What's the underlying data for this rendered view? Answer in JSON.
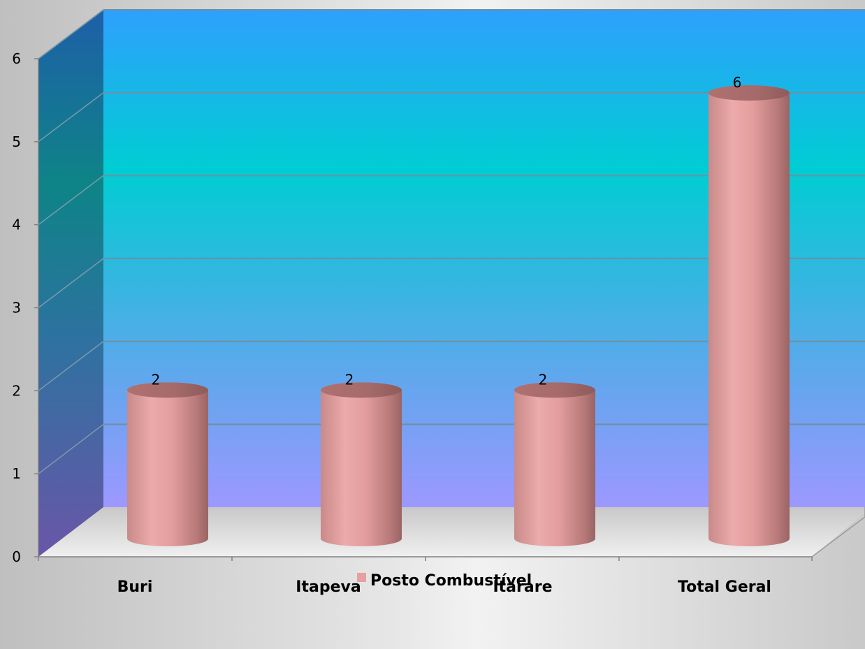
{
  "chart_data": {
    "type": "bar",
    "style": "3d-cylinder",
    "categories": [
      "Buri",
      "Itapeva",
      "Itarare",
      "Total Geral"
    ],
    "series": [
      {
        "name": "Posto Combustível",
        "values": [
          2,
          2,
          2,
          6
        ],
        "color": "#e6a0a0"
      }
    ],
    "data_labels": [
      "2",
      "2",
      "2",
      "6"
    ],
    "ylim": [
      0,
      6
    ],
    "y_ticks": [
      "0",
      "1",
      "2",
      "3",
      "4",
      "5",
      "6"
    ],
    "grid": true,
    "legend": {
      "position": "bottom",
      "entries": [
        "Posto Combustível"
      ]
    },
    "title": "",
    "xlabel": "",
    "ylabel": ""
  },
  "colors": {
    "back_wall_top": "#2a9ffc",
    "back_wall_mid": "#00cdd2",
    "back_wall_bottom": "#9a98ff",
    "side_wall_top": "#1a5fa8",
    "side_wall_mid": "#0a8a88",
    "side_wall_bottom": "#6a5aa8",
    "floor": "#d9d9d9",
    "gridline": "#6d8fa3",
    "bar": "#e6a0a0",
    "bar_dark": "#b87a7a"
  }
}
